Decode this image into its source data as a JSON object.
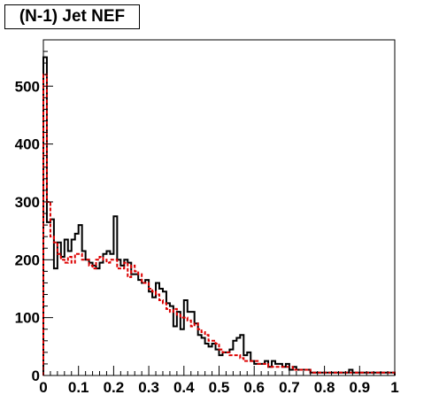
{
  "chart_data": {
    "type": "histogram",
    "title": "(N-1) Jet NEF",
    "xlim": [
      0,
      1
    ],
    "ylim": [
      0,
      580
    ],
    "xticks": [
      0,
      0.1,
      0.2,
      0.3,
      0.4,
      0.5,
      0.6,
      0.7,
      0.8,
      0.9,
      1
    ],
    "xtick_labels": [
      "0",
      "0.1",
      "0.2",
      "0.3",
      "0.4",
      "0.5",
      "0.6",
      "0.7",
      "0.8",
      "0.9",
      "1"
    ],
    "yticks": [
      0,
      100,
      200,
      300,
      400,
      500
    ],
    "ytick_labels": [
      "0",
      "100",
      "200",
      "300",
      "400",
      "500"
    ],
    "bin_width": 0.01,
    "grid": false,
    "series": [
      {
        "color": "#000000",
        "style": "solid",
        "values": [
          550,
          265,
          270,
          185,
          230,
          205,
          235,
          215,
          235,
          245,
          260,
          215,
          200,
          195,
          190,
          185,
          195,
          210,
          215,
          210,
          275,
          200,
          190,
          200,
          195,
          175,
          175,
          165,
          160,
          165,
          145,
          135,
          160,
          150,
          145,
          125,
          120,
          85,
          110,
          80,
          130,
          110,
          110,
          90,
          70,
          65,
          55,
          50,
          55,
          45,
          35,
          40,
          40,
          45,
          60,
          65,
          70,
          35,
          40,
          25,
          20,
          20,
          20,
          25,
          15,
          25,
          20,
          20,
          15,
          20,
          10,
          15,
          10,
          10,
          10,
          10,
          5,
          5,
          5,
          5,
          5,
          5,
          5,
          5,
          5,
          5,
          5,
          10,
          5,
          5,
          5,
          5,
          5,
          5,
          5,
          5,
          5,
          5,
          5,
          5
        ]
      },
      {
        "color": "#dd0000",
        "style": "dashed",
        "values": [
          520,
          300,
          240,
          230,
          210,
          200,
          195,
          205,
          195,
          210,
          210,
          200,
          200,
          190,
          185,
          200,
          205,
          200,
          195,
          200,
          200,
          185,
          185,
          195,
          170,
          190,
          180,
          175,
          160,
          160,
          150,
          145,
          140,
          130,
          125,
          115,
          110,
          115,
          105,
          100,
          100,
          95,
          85,
          90,
          80,
          75,
          70,
          60,
          60,
          55,
          45,
          40,
          40,
          35,
          35,
          35,
          30,
          25,
          25,
          25,
          25,
          20,
          20,
          20,
          15,
          15,
          15,
          15,
          15,
          15,
          15,
          10,
          10,
          10,
          10,
          10,
          5,
          5,
          5,
          5,
          5,
          5,
          5,
          5,
          5,
          5,
          5,
          5,
          5,
          5,
          5,
          5,
          5,
          5,
          5,
          5,
          5,
          5,
          5,
          5
        ]
      }
    ]
  }
}
